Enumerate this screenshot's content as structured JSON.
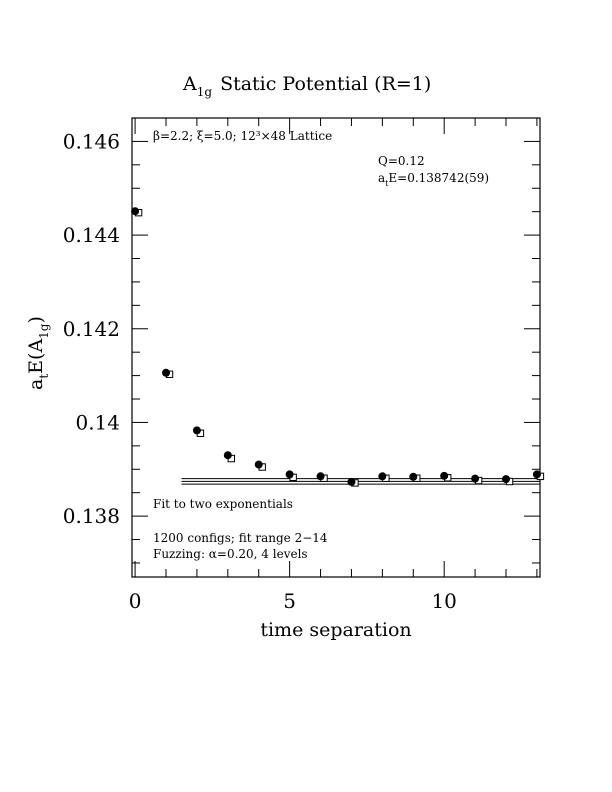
{
  "chart_data": {
    "type": "scatter",
    "title": "A",
    "title_sub": "1g",
    "title_rest": "Static Potential (R=1)",
    "ylabel_main": "a",
    "ylabel_sub1": "t",
    "ylabel_mid": "E(A",
    "ylabel_sub2": "1g",
    "ylabel_end": ")",
    "xlabel": "time separation",
    "xlim": [
      -0.1,
      13.1
    ],
    "ylim": [
      0.1367,
      0.1465
    ],
    "x_ticks": [
      0,
      5,
      10
    ],
    "x_tick_labels": [
      "0",
      "5",
      "10"
    ],
    "y_ticks": [
      0.138,
      0.14,
      0.142,
      0.144,
      0.146
    ],
    "y_tick_labels": [
      "0.138",
      "0.14",
      "0.142",
      "0.144",
      "0.146"
    ],
    "series": [
      {
        "marker": "filled-circle",
        "x": [
          0,
          1,
          2,
          3,
          4,
          5,
          6,
          7,
          8,
          9,
          10,
          11,
          12,
          13
        ],
        "y": [
          0.14451,
          0.14106,
          0.13983,
          0.1393,
          0.1391,
          0.13889,
          0.13885,
          0.13873,
          0.13885,
          0.13884,
          0.13886,
          0.1388,
          0.13879,
          0.13889
        ]
      },
      {
        "marker": "open-square",
        "x": [
          0,
          1,
          2,
          3,
          4,
          5,
          6,
          7,
          8,
          9,
          10,
          11,
          12,
          13
        ],
        "y": [
          0.1445,
          0.14105,
          0.13979,
          0.13925,
          0.13907,
          0.13885,
          0.13883,
          0.13873,
          0.13883,
          0.13883,
          0.13884,
          0.13878,
          0.13876,
          0.13887
        ]
      }
    ],
    "fit_band": {
      "x_start": 1.5,
      "x_end": 13.1,
      "center": 0.138742,
      "error": 5.9e-05
    },
    "annotations": {
      "lattice_beta": "β=2.2; ξ=5.0; 12³×48 Lattice",
      "q_value": "Q=0.12",
      "energy_prefix": "a",
      "energy_sub": "t",
      "energy_rest": "E=0.138742(59)",
      "fit_note": "Fit to two exponentials",
      "configs_note": "1200 configs; fit range 2−14",
      "fuzzing_note": "Fuzzing: α=0.20, 4 levels"
    },
    "grid": false,
    "legend": "none"
  }
}
